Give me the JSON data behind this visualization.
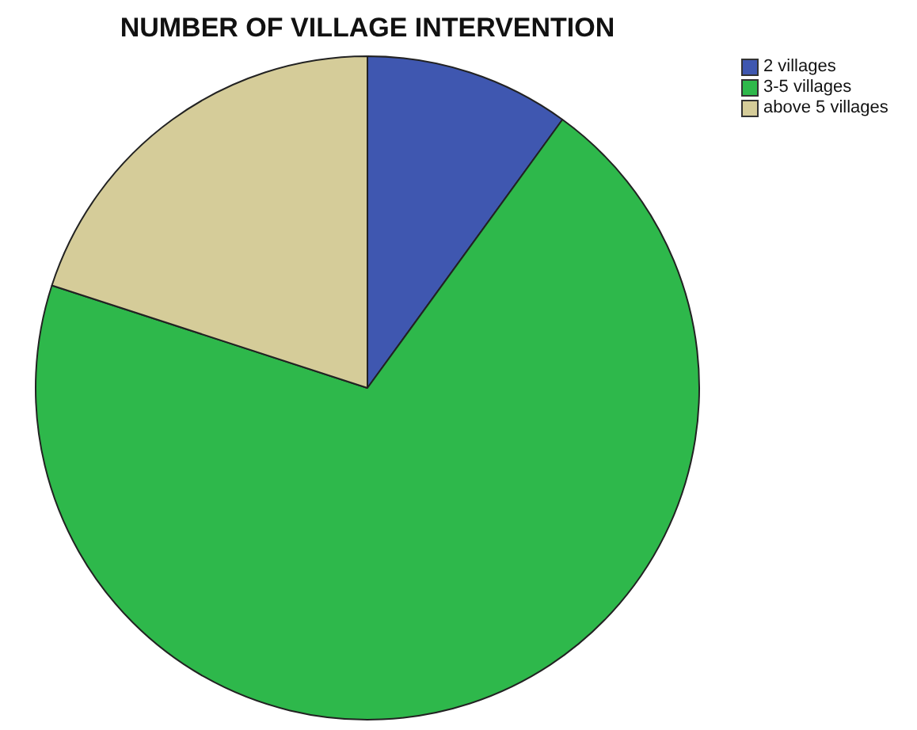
{
  "chart_data": {
    "type": "pie",
    "title": "NUMBER OF VILLAGE INTERVENTION",
    "categories": [
      "2 villages",
      "3-5 villages",
      "above 5 villages"
    ],
    "values": [
      10,
      70,
      20
    ],
    "colors": [
      "#3f57b0",
      "#2eb84b",
      "#d5cc99"
    ],
    "legend": "top right"
  }
}
